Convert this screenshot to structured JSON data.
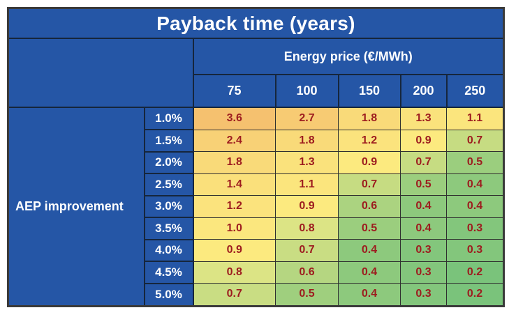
{
  "title": "Payback time (years)",
  "column_group_header": "Energy price (€/MWh)",
  "row_group_header": "AEP improvement",
  "price_columns": [
    "75",
    "100",
    "150",
    "200",
    "250"
  ],
  "rows": [
    {
      "label": "1.0%",
      "values": [
        "3.6",
        "2.7",
        "1.8",
        "1.3",
        "1.1"
      ],
      "colors": [
        "#F5C16F",
        "#F7CB73",
        "#F9DA79",
        "#FAE27C",
        "#FBE57D"
      ]
    },
    {
      "label": "1.5%",
      "values": [
        "2.4",
        "1.8",
        "1.2",
        "0.9",
        "0.7"
      ],
      "colors": [
        "#F8D176",
        "#F9DA79",
        "#FBE37D",
        "#FCEA7F",
        "#C6DC82"
      ]
    },
    {
      "label": "2.0%",
      "values": [
        "1.8",
        "1.3",
        "0.9",
        "0.7",
        "0.5"
      ],
      "colors": [
        "#F9DA79",
        "#FAE27C",
        "#FCEA7F",
        "#C6DC82",
        "#9BCE7E"
      ]
    },
    {
      "label": "2.5%",
      "values": [
        "1.4",
        "1.1",
        "0.7",
        "0.5",
        "0.4"
      ],
      "colors": [
        "#FAE07B",
        "#FBE57D",
        "#C6DC82",
        "#9BCE7E",
        "#8DC97D"
      ]
    },
    {
      "label": "3.0%",
      "values": [
        "1.2",
        "0.9",
        "0.6",
        "0.4",
        "0.4"
      ],
      "colors": [
        "#FBE37D",
        "#FCEA7F",
        "#ABD380",
        "#8DC97D",
        "#8DC97D"
      ]
    },
    {
      "label": "3.5%",
      "values": [
        "1.0",
        "0.8",
        "0.5",
        "0.4",
        "0.3"
      ],
      "colors": [
        "#FBE77E",
        "#DCE485",
        "#9BCE7E",
        "#8DC97D",
        "#83C67C"
      ]
    },
    {
      "label": "4.0%",
      "values": [
        "0.9",
        "0.7",
        "0.4",
        "0.3",
        "0.3"
      ],
      "colors": [
        "#FCEA7F",
        "#C9DD83",
        "#8DC97D",
        "#83C67C",
        "#83C67C"
      ]
    },
    {
      "label": "4.5%",
      "values": [
        "0.8",
        "0.6",
        "0.4",
        "0.3",
        "0.2"
      ],
      "colors": [
        "#DCE485",
        "#B5D681",
        "#8DC97D",
        "#83C67C",
        "#7AC37B"
      ]
    },
    {
      "label": "5.0%",
      "values": [
        "0.7",
        "0.5",
        "0.4",
        "0.3",
        "0.2"
      ],
      "colors": [
        "#C9DD83",
        "#9FCF7E",
        "#8DC97D",
        "#83C67C",
        "#7AC37B"
      ]
    }
  ],
  "colors": {
    "header_blue": "#2556a6",
    "header_text": "#ffffff",
    "value_text": "#9d1c1f",
    "blue_cell_border": "#16263c",
    "data_cell_border": "#2f2f2f",
    "outer_border": "#3a3a3a",
    "scale_high": "#F5C16F",
    "scale_mid": "#FCEA7F",
    "scale_low": "#7AC37B"
  },
  "chart_data": {
    "type": "heatmap",
    "title": "Payback time (years)",
    "xlabel": "Energy price (€/MWh)",
    "ylabel": "AEP improvement",
    "x": [
      75,
      100,
      150,
      200,
      250
    ],
    "y": [
      "1.0%",
      "1.5%",
      "2.0%",
      "2.5%",
      "3.0%",
      "3.5%",
      "4.0%",
      "4.5%",
      "5.0%"
    ],
    "values": [
      [
        3.6,
        2.7,
        1.8,
        1.3,
        1.1
      ],
      [
        2.4,
        1.8,
        1.2,
        0.9,
        0.7
      ],
      [
        1.8,
        1.3,
        0.9,
        0.7,
        0.5
      ],
      [
        1.4,
        1.1,
        0.7,
        0.5,
        0.4
      ],
      [
        1.2,
        0.9,
        0.6,
        0.4,
        0.4
      ],
      [
        1.0,
        0.8,
        0.5,
        0.4,
        0.3
      ],
      [
        0.9,
        0.7,
        0.4,
        0.3,
        0.3
      ],
      [
        0.8,
        0.6,
        0.4,
        0.3,
        0.2
      ],
      [
        0.7,
        0.5,
        0.4,
        0.3,
        0.2
      ]
    ],
    "value_range": [
      0.2,
      3.6
    ],
    "colorscale": "green (low) → yellow (mid) → orange (high)",
    "legend_position": "none",
    "grid": true
  }
}
